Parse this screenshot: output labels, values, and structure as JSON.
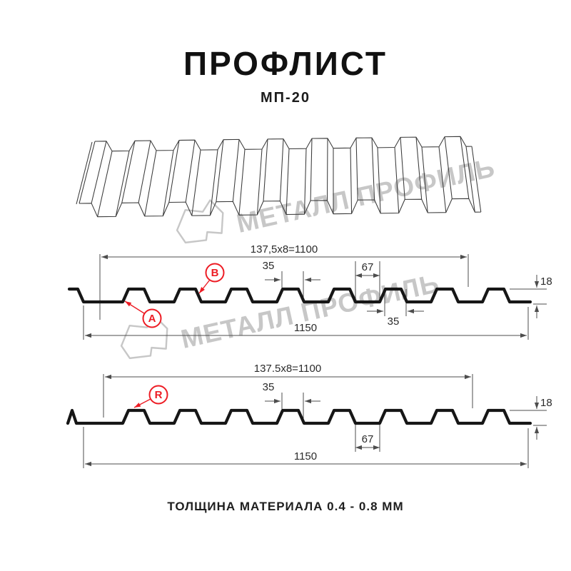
{
  "page": {
    "title": "ПРОФЛИСТ",
    "subtitle": "МП-20",
    "footer": "ТОЛЩИНА МАТЕРИАЛА 0.4 - 0.8 ММ"
  },
  "watermark": {
    "text": "МЕТАЛЛ ПРОФИЛЬ",
    "logo_icon": "metal-profile-logo"
  },
  "colors": {
    "accent_red": "#ed1c24",
    "drawing_line": "#4d4d4d",
    "profile_line": "#161616",
    "watermark_gray": "#c7c7c7",
    "background": "#ffffff"
  },
  "profile_views": {
    "top_view": {
      "dim_pitch": "137,5x8=1100",
      "dim_rib_top_width": "35",
      "dim_valley_width": "67",
      "dim_height": "18",
      "dim_rib_bottom_width": "35",
      "dim_total_width": "1150",
      "label_a": "A",
      "label_b": "B"
    },
    "bottom_view": {
      "dim_pitch": "137.5x8=1100",
      "dim_rib_top_width": "35",
      "dim_height": "18",
      "dim_valley_width": "67",
      "dim_total_width": "1150",
      "label_r": "R"
    }
  }
}
